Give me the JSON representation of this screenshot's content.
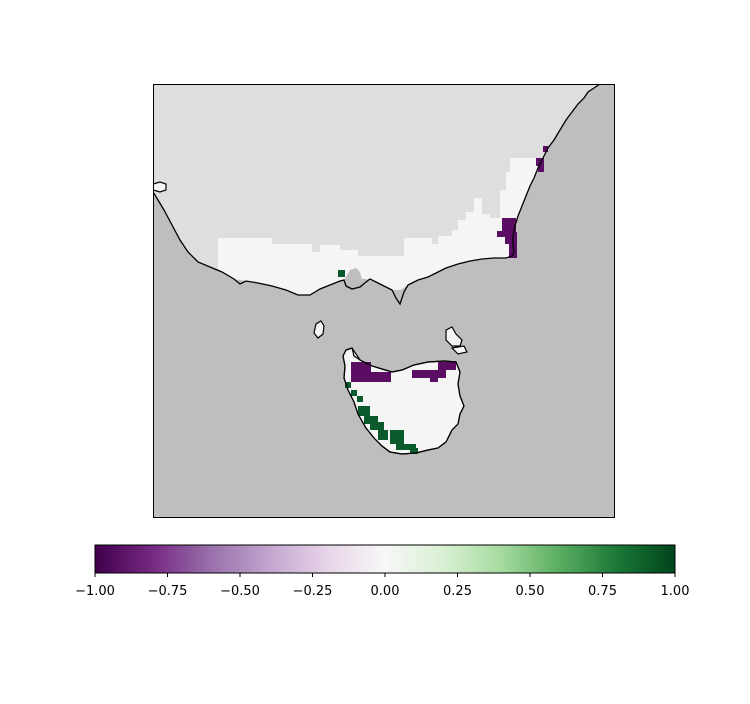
{
  "map": {
    "colors": {
      "ocean": "#bebebe",
      "inland_no_data": "#dedede",
      "land_zero": "#f5f5f5",
      "negative": "#5a0d63",
      "positive": "#0b5a2b",
      "coastline": "#000000"
    },
    "colorbar": {
      "colormap": "PRGn",
      "range": [
        -1.0,
        1.0
      ],
      "orientation": "horizontal",
      "ticks": [
        {
          "value": -1.0,
          "label": "−1.00"
        },
        {
          "value": -0.75,
          "label": "−0.75"
        },
        {
          "value": -0.5,
          "label": "−0.50"
        },
        {
          "value": -0.25,
          "label": "−0.25"
        },
        {
          "value": 0.0,
          "label": "0.00"
        },
        {
          "value": 0.25,
          "label": "0.25"
        },
        {
          "value": 0.5,
          "label": "0.50"
        },
        {
          "value": 0.75,
          "label": "0.75"
        },
        {
          "value": 1.0,
          "label": "1.00"
        }
      ]
    }
  }
}
